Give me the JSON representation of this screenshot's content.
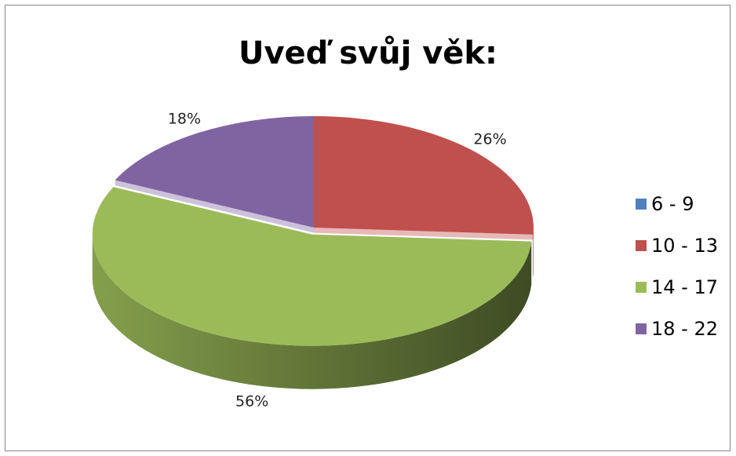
{
  "chart_data": {
    "type": "pie",
    "title": "Uveď svůj věk:",
    "categories": [
      "6 - 9",
      "10 - 13",
      "14 - 17",
      "18 - 22"
    ],
    "values": [
      0,
      26,
      56,
      18
    ],
    "value_labels": [
      null,
      "26%",
      "56%",
      "18%"
    ],
    "colors": [
      "#4f81bd",
      "#c0504d",
      "#9bbb59",
      "#8064a2"
    ],
    "legend": "right"
  }
}
